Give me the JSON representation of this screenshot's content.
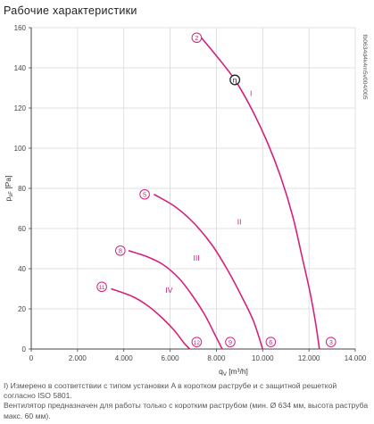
{
  "page": {
    "title": "Рабочие характеристики",
    "notes": [
      "I) Измерено в соответствии с типом установки A в коротком раструбе и с защитной решеткой согласно ISO 5801.",
      "Вентилятор предназначен для работы только с коротким раструбом (мин. Ø 634 мм, высота раструба макс. 60 мм)."
    ]
  },
  "colors": {
    "curve": "#d6217c",
    "axis": "#444444",
    "grid": "#d9d9d9"
  },
  "chart_data": {
    "type": "line",
    "xlabel": "q",
    "xlabel_sub": "V",
    "xlabel_unit": "[m³/h]",
    "ylabel": "p",
    "ylabel_sub": "sF",
    "ylabel_unit": "[Pa]",
    "xlim": [
      0,
      14000
    ],
    "ylim": [
      0,
      160
    ],
    "x_ticks": [
      0,
      2000,
      4000,
      6000,
      8000,
      10000,
      12000,
      14000
    ],
    "x_tick_labels": [
      "0",
      "2.000",
      "4.000",
      "6.000",
      "8.000",
      "10.000",
      "12.000",
      "14.000"
    ],
    "y_ticks": [
      0,
      20,
      40,
      60,
      80,
      100,
      120,
      140,
      160
    ],
    "y_tick_labels": [
      "0",
      "20",
      "40",
      "60",
      "80",
      "100",
      "120",
      "140",
      "160"
    ],
    "grid": true,
    "side_code": "fb0634d4k4m5v004/005",
    "series": [
      {
        "name": "I",
        "label_at": [
          9450,
          126
        ],
        "points": [
          [
            7350,
            155
          ],
          [
            8000,
            146
          ],
          [
            8800,
            134
          ],
          [
            9500,
            120
          ],
          [
            10200,
            103
          ],
          [
            10800,
            85
          ],
          [
            11300,
            66
          ],
          [
            11700,
            46
          ],
          [
            12050,
            28
          ],
          [
            12300,
            12
          ],
          [
            12450,
            0
          ]
        ]
      },
      {
        "name": "II",
        "label_at": [
          8900,
          62
        ],
        "points": [
          [
            5300,
            77
          ],
          [
            6200,
            71
          ],
          [
            7000,
            63
          ],
          [
            7800,
            52
          ],
          [
            8500,
            39
          ],
          [
            9100,
            26
          ],
          [
            9600,
            14
          ],
          [
            10000,
            0
          ]
        ]
      },
      {
        "name": "III",
        "label_at": [
          7000,
          44
        ],
        "points": [
          [
            4200,
            49
          ],
          [
            5000,
            46
          ],
          [
            5700,
            42
          ],
          [
            6400,
            35
          ],
          [
            7000,
            26
          ],
          [
            7500,
            17
          ],
          [
            7900,
            8
          ],
          [
            8250,
            0
          ]
        ]
      },
      {
        "name": "IV",
        "label_at": [
          5800,
          28
        ],
        "points": [
          [
            3450,
            30
          ],
          [
            4400,
            26
          ],
          [
            5100,
            21
          ],
          [
            5700,
            15
          ],
          [
            6200,
            9
          ],
          [
            6600,
            3
          ],
          [
            6850,
            0
          ]
        ]
      }
    ],
    "point_markers": [
      {
        "label": "2",
        "x": 7150,
        "y": 155
      },
      {
        "label": "5",
        "x": 4900,
        "y": 77
      },
      {
        "label": "8",
        "x": 3850,
        "y": 49
      },
      {
        "label": "11",
        "x": 3050,
        "y": 31
      },
      {
        "label": "3",
        "x": 12950,
        "y": 3.5
      },
      {
        "label": "6",
        "x": 10350,
        "y": 3.5
      },
      {
        "label": "9",
        "x": 8600,
        "y": 3.5
      },
      {
        "label": "12",
        "x": 7150,
        "y": 3.5
      }
    ],
    "efficiency_marker": {
      "label": "η",
      "x": 8800,
      "y": 134
    }
  }
}
